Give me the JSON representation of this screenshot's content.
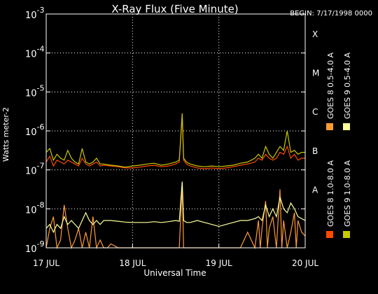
{
  "chart_data": {
    "type": "line",
    "title": "X-Ray Flux (Five Minute)",
    "begin_label": "BEGIN: 7/17/1998 0000",
    "xlabel": "Universal Time",
    "ylabel": "Watts meter-2",
    "x_ticks": [
      "17 JUL",
      "18 JUL",
      "19 JUL",
      "20 JUL"
    ],
    "xlim_hours": [
      0,
      72
    ],
    "ylim_log10": [
      -9,
      -3
    ],
    "y_ticks": [
      {
        "base": "10",
        "exp": "-9"
      },
      {
        "base": "10",
        "exp": "-8"
      },
      {
        "base": "10",
        "exp": "-7"
      },
      {
        "base": "10",
        "exp": "-6"
      },
      {
        "base": "10",
        "exp": "-5"
      },
      {
        "base": "10",
        "exp": "-4"
      },
      {
        "base": "10",
        "exp": "-3"
      }
    ],
    "flare_classes": [
      {
        "label": "A",
        "log10": -7.5
      },
      {
        "label": "B",
        "log10": -6.5
      },
      {
        "label": "C",
        "log10": -5.5
      },
      {
        "label": "M",
        "log10": -4.5
      },
      {
        "label": "X",
        "log10": -3.5
      }
    ],
    "grid": true,
    "legend_position": "right",
    "series": [
      {
        "name": "GOES 8 1.0-8.0 A",
        "color": "#ff4a00",
        "x": [
          0,
          1,
          2,
          3,
          4,
          5,
          6,
          7,
          8,
          9,
          10,
          11,
          12,
          13,
          14,
          15,
          16,
          18,
          20,
          22,
          24,
          26,
          28,
          30,
          32,
          34,
          36,
          37,
          37.8,
          38.2,
          39,
          40,
          42,
          44,
          46,
          48,
          50,
          52,
          54,
          56,
          58,
          59,
          60,
          61,
          62,
          63,
          64,
          65,
          66,
          67,
          68,
          69,
          70,
          71,
          72
        ],
        "log10_y": [
          -6.8,
          -6.65,
          -6.9,
          -6.75,
          -6.8,
          -6.85,
          -6.75,
          -6.8,
          -6.85,
          -6.9,
          -6.7,
          -6.85,
          -6.9,
          -6.85,
          -6.8,
          -6.9,
          -6.88,
          -6.9,
          -6.92,
          -6.95,
          -6.95,
          -6.93,
          -6.9,
          -6.88,
          -6.92,
          -6.9,
          -6.85,
          -6.8,
          -5.6,
          -6.75,
          -6.85,
          -6.9,
          -6.95,
          -6.97,
          -6.95,
          -6.97,
          -6.95,
          -6.92,
          -6.88,
          -6.85,
          -6.8,
          -6.7,
          -6.75,
          -6.6,
          -6.7,
          -6.75,
          -6.7,
          -6.55,
          -6.6,
          -6.4,
          -6.7,
          -6.6,
          -6.75,
          -6.7,
          -6.7
        ]
      },
      {
        "name": "GOES 8 0.5-4.0 A",
        "color": "#ff9a33",
        "x": [
          0,
          1,
          2,
          3,
          4,
          5,
          6,
          7,
          8,
          9,
          10,
          11,
          12,
          13,
          14,
          15,
          16,
          17,
          18,
          20,
          22,
          24,
          26,
          28,
          30,
          32,
          34,
          36,
          37,
          37.8,
          38.2,
          39,
          40,
          42,
          44,
          46,
          48,
          50,
          52,
          54,
          56,
          58,
          59,
          59.5,
          60,
          61,
          61.5,
          62,
          63,
          64,
          65,
          65.5,
          66,
          67,
          68,
          69,
          69.5,
          70,
          71,
          72
        ],
        "log10_y": [
          -9,
          -8.5,
          -8.2,
          -9,
          -8.8,
          -7.9,
          -8.5,
          -9,
          -8.8,
          -8.5,
          -9,
          -8.6,
          -9,
          -8.2,
          -9,
          -8.8,
          -9,
          -9,
          -8.9,
          -9,
          -9,
          -9,
          -9,
          -9,
          -9,
          -9,
          -9,
          -9,
          -9,
          -7.4,
          -9,
          -9,
          -9,
          -9,
          -9,
          -9,
          -9,
          -9,
          -9,
          -9,
          -8.6,
          -9,
          -8.3,
          -9,
          -8.5,
          -7.8,
          -9,
          -8.5,
          -8.2,
          -9,
          -7.5,
          -9,
          -8.3,
          -9,
          -8.6,
          -8.1,
          -9,
          -8.3,
          -8.6,
          -8.7
        ]
      },
      {
        "name": "GOES 9 1.0-8.0 A",
        "color": "#c8c800",
        "x": [
          0,
          1,
          2,
          3,
          4,
          5,
          6,
          7,
          8,
          9,
          10,
          11,
          12,
          13,
          14,
          15,
          16,
          18,
          20,
          22,
          24,
          26,
          28,
          30,
          32,
          34,
          36,
          37,
          37.8,
          38.2,
          39,
          40,
          42,
          44,
          46,
          48,
          50,
          52,
          54,
          56,
          58,
          59,
          60,
          61,
          62,
          63,
          64,
          65,
          66,
          67,
          68,
          69,
          70,
          71,
          72
        ],
        "log10_y": [
          -6.55,
          -6.45,
          -6.75,
          -6.6,
          -6.7,
          -6.75,
          -6.5,
          -6.7,
          -6.8,
          -6.85,
          -6.45,
          -6.8,
          -6.85,
          -6.8,
          -6.7,
          -6.85,
          -6.85,
          -6.88,
          -6.9,
          -6.93,
          -6.9,
          -6.88,
          -6.85,
          -6.83,
          -6.88,
          -6.85,
          -6.8,
          -6.75,
          -5.55,
          -6.7,
          -6.8,
          -6.85,
          -6.9,
          -6.92,
          -6.9,
          -6.92,
          -6.9,
          -6.88,
          -6.83,
          -6.8,
          -6.7,
          -6.6,
          -6.7,
          -6.4,
          -6.6,
          -6.7,
          -6.55,
          -6.4,
          -6.5,
          -6.0,
          -6.55,
          -6.5,
          -6.6,
          -6.55,
          -6.55
        ]
      },
      {
        "name": "GOES 9 0.5-4.0 A",
        "color": "#ffff99",
        "x": [
          0,
          1,
          2,
          3,
          4,
          5,
          6,
          7,
          8,
          9,
          10,
          11,
          12,
          13,
          14,
          15,
          16,
          18,
          20,
          22,
          24,
          26,
          28,
          30,
          32,
          34,
          36,
          37,
          37.8,
          38.2,
          39,
          40,
          42,
          44,
          46,
          48,
          50,
          52,
          54,
          56,
          58,
          59,
          60,
          61,
          62,
          63,
          64,
          65,
          66,
          67,
          68,
          69,
          70,
          71,
          72
        ],
        "log10_y": [
          -8.5,
          -8.4,
          -8.6,
          -8.4,
          -8.5,
          -8.2,
          -8.4,
          -8.3,
          -8.4,
          -8.5,
          -8.3,
          -8.1,
          -8.3,
          -8.4,
          -8.3,
          -8.4,
          -8.3,
          -8.3,
          -8.32,
          -8.34,
          -8.35,
          -8.35,
          -8.35,
          -8.33,
          -8.35,
          -8.33,
          -8.3,
          -8.32,
          -7.3,
          -8.3,
          -8.35,
          -8.35,
          -8.3,
          -8.35,
          -8.4,
          -8.45,
          -8.4,
          -8.35,
          -8.3,
          -8.3,
          -8.25,
          -8.2,
          -8.3,
          -7.9,
          -8.2,
          -8.0,
          -8.2,
          -7.7,
          -8.0,
          -8.1,
          -7.85,
          -8.0,
          -8.2,
          -8.25,
          -8.3
        ]
      }
    ]
  }
}
